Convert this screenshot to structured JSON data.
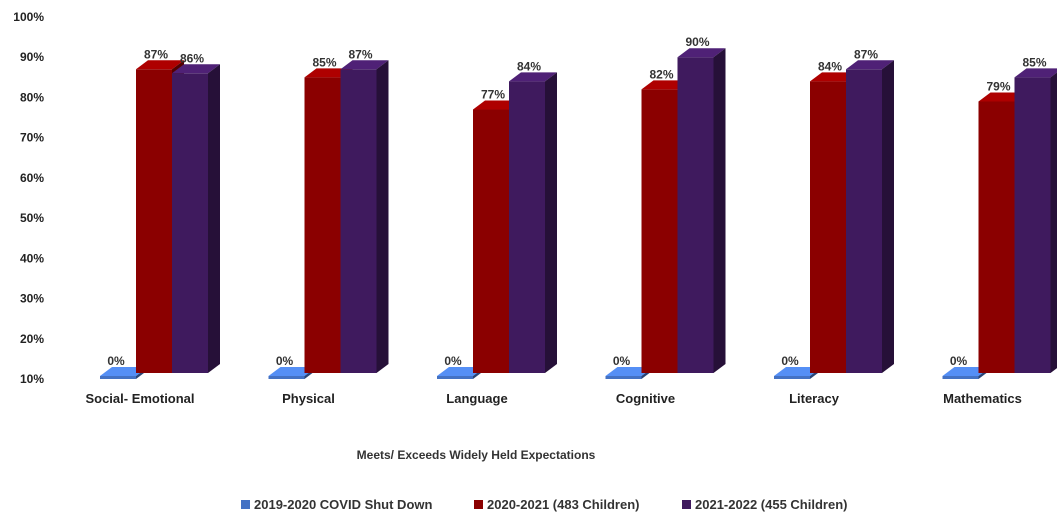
{
  "chart_data": {
    "type": "bar",
    "title": "",
    "xlabel": "Meets/ Exceeds Widely Held Expectations",
    "ylabel": "",
    "ylim": [
      10,
      100
    ],
    "yticks": [
      "10%",
      "20%",
      "30%",
      "40%",
      "50%",
      "60%",
      "70%",
      "80%",
      "90%",
      "100%"
    ],
    "categories": [
      "Social- Emotional",
      "Physical",
      "Language",
      "Cognitive",
      "Literacy",
      "Mathematics"
    ],
    "series": [
      {
        "name": "2019-2020 COVID Shut Down",
        "color": "#4472c4",
        "values": [
          0,
          0,
          0,
          0,
          0,
          0
        ],
        "labels": [
          "0%",
          "0%",
          "0%",
          "0%",
          "0%",
          "0%"
        ]
      },
      {
        "name": "2020-2021 (483 Children)",
        "color": "#8b0000",
        "values": [
          87,
          85,
          77,
          82,
          84,
          79
        ],
        "labels": [
          "87%",
          "85%",
          "77%",
          "82%",
          "84%",
          "79%"
        ]
      },
      {
        "name": "2021-2022 (455 Children)",
        "color": "#3f1a5e",
        "values": [
          86,
          87,
          84,
          90,
          87,
          85
        ],
        "labels": [
          "86%",
          "87%",
          "84%",
          "90%",
          "87%",
          "85%"
        ]
      }
    ],
    "legend": "bottom",
    "grid": false
  }
}
